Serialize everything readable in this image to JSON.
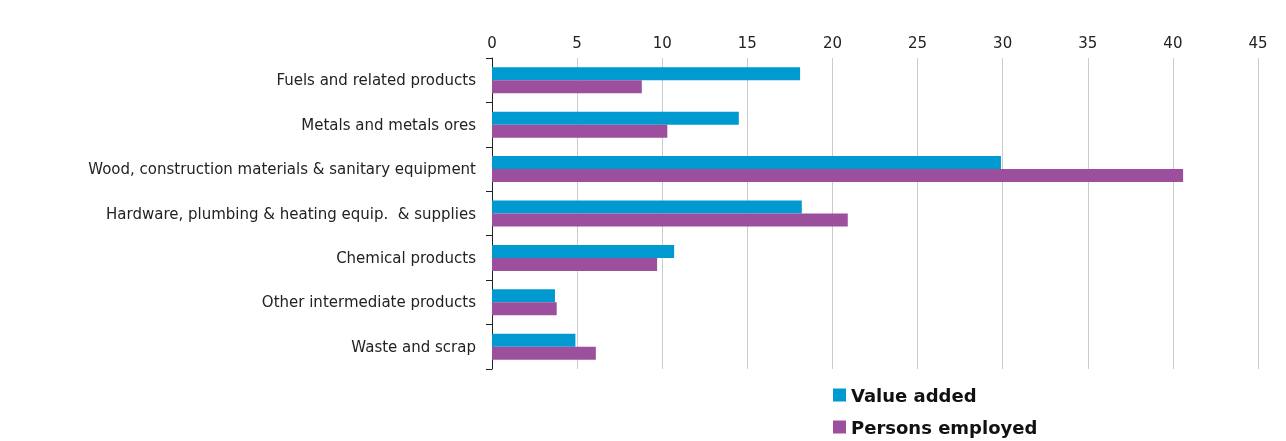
{
  "chart_data": {
    "type": "bar",
    "orientation": "horizontal",
    "categories": [
      "Fuels and related products",
      "Metals and metals ores",
      "Wood, construction materials & sanitary equipment",
      "Hardware, plumbing & heating equip.  & supplies",
      "Chemical products",
      "Other intermediate products",
      "Waste and scrap"
    ],
    "series": [
      {
        "name": "Value added",
        "color": "#0099d0",
        "values": [
          18.1,
          14.5,
          29.9,
          18.2,
          10.7,
          3.7,
          4.9
        ]
      },
      {
        "name": "Persons employed",
        "color": "#9b4f9c",
        "values": [
          8.8,
          10.3,
          40.6,
          20.9,
          9.7,
          3.8,
          6.1
        ]
      }
    ],
    "xlim": [
      0,
      45
    ],
    "xticks": [
      0,
      5,
      10,
      15,
      20,
      25,
      30,
      35,
      40,
      45
    ],
    "grid": "x",
    "legend": "bottom"
  }
}
